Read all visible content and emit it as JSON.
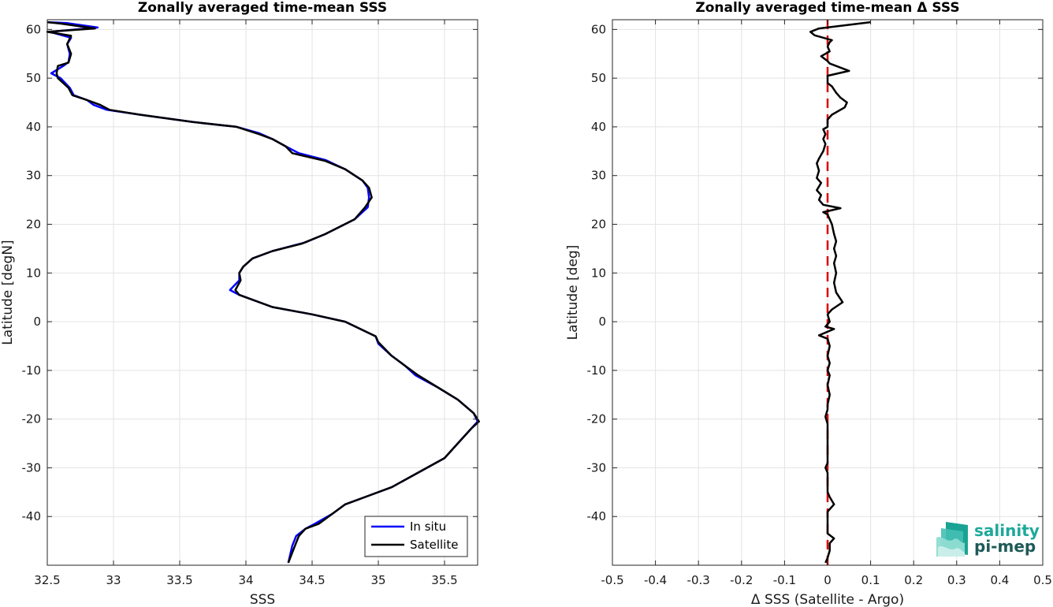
{
  "chart_data": [
    {
      "type": "line",
      "title": "Zonally averaged time-mean SSS",
      "xlabel": "SSS",
      "ylabel": "Latitude [degN]",
      "xlim": [
        32.5,
        35.75
      ],
      "ylim": [
        -50,
        62
      ],
      "xticks": [
        32.5,
        33,
        33.5,
        34,
        34.5,
        35,
        35.5
      ],
      "xtick_labels": [
        "32.5",
        "33",
        "33.5",
        "34",
        "34.5",
        "35",
        "35.5"
      ],
      "yticks": [
        -40,
        -30,
        -20,
        -10,
        0,
        10,
        20,
        30,
        40,
        50,
        60
      ],
      "ytick_labels": [
        "-40",
        "-30",
        "-20",
        "-10",
        "0",
        "10",
        "20",
        "30",
        "40",
        "50",
        "60"
      ],
      "grid": true,
      "legend": {
        "position": "bottom-right",
        "entries": [
          {
            "label": "In situ",
            "color": "#0000ff"
          },
          {
            "label": "Satellite",
            "color": "#000000"
          }
        ]
      },
      "series": [
        {
          "name": "In situ",
          "color": "#0000ff",
          "points": [
            [
              32.5,
              61.5
            ],
            [
              32.65,
              61.3
            ],
            [
              32.88,
              60.4
            ],
            [
              32.52,
              59.5
            ],
            [
              32.68,
              58.3
            ],
            [
              32.65,
              57
            ],
            [
              32.67,
              55
            ],
            [
              32.66,
              53.3
            ],
            [
              32.62,
              52.5
            ],
            [
              32.53,
              51
            ],
            [
              32.6,
              50
            ],
            [
              32.67,
              48
            ],
            [
              32.7,
              46.5
            ],
            [
              32.8,
              45.5
            ],
            [
              32.85,
              44.5
            ],
            [
              32.95,
              43.5
            ],
            [
              33.2,
              42.5
            ],
            [
              33.6,
              41
            ],
            [
              33.93,
              40
            ],
            [
              34.1,
              38.7
            ],
            [
              34.2,
              37.5
            ],
            [
              34.3,
              36
            ],
            [
              34.4,
              34.6
            ],
            [
              34.6,
              33.2
            ],
            [
              34.75,
              31.3
            ],
            [
              34.88,
              29
            ],
            [
              34.92,
              27.5
            ],
            [
              34.93,
              25.5
            ],
            [
              34.92,
              23.5
            ],
            [
              34.82,
              21
            ],
            [
              34.6,
              18
            ],
            [
              34.45,
              16.3
            ],
            [
              34.2,
              14.5
            ],
            [
              34.05,
              13
            ],
            [
              33.98,
              11.3
            ],
            [
              33.95,
              10
            ],
            [
              33.95,
              8.5
            ],
            [
              33.88,
              6.5
            ],
            [
              33.95,
              5.5
            ],
            [
              34.2,
              3
            ],
            [
              34.5,
              1.5
            ],
            [
              34.75,
              0
            ],
            [
              34.98,
              -3
            ],
            [
              35.0,
              -4.5
            ],
            [
              35.1,
              -7
            ],
            [
              35.2,
              -9
            ],
            [
              35.28,
              -11
            ],
            [
              35.45,
              -13.5
            ],
            [
              35.6,
              -16
            ],
            [
              35.72,
              -18.8
            ],
            [
              35.75,
              -20.5
            ],
            [
              35.7,
              -22
            ],
            [
              35.6,
              -25
            ],
            [
              35.5,
              -28
            ],
            [
              35.3,
              -31
            ],
            [
              35.1,
              -34
            ],
            [
              34.9,
              -36
            ],
            [
              34.75,
              -37.5
            ],
            [
              34.65,
              -39.5
            ],
            [
              34.52,
              -41.5
            ],
            [
              34.45,
              -42.5
            ],
            [
              34.38,
              -44
            ],
            [
              34.35,
              -46
            ],
            [
              34.32,
              -49.5
            ]
          ]
        },
        {
          "name": "Satellite",
          "color": "#000000",
          "points": [
            [
              32.5,
              61.5
            ],
            [
              32.6,
              61.2
            ],
            [
              32.86,
              60.2
            ],
            [
              32.55,
              59.6
            ],
            [
              32.5,
              59.5
            ],
            [
              32.68,
              58.7
            ],
            [
              32.65,
              57
            ],
            [
              32.68,
              55
            ],
            [
              32.66,
              53.2
            ],
            [
              32.58,
              52.5
            ],
            [
              32.57,
              51
            ],
            [
              32.58,
              50
            ],
            [
              32.66,
              48
            ],
            [
              32.69,
              46.5
            ],
            [
              32.8,
              45.5
            ],
            [
              32.9,
              44.5
            ],
            [
              32.97,
              43.5
            ],
            [
              33.2,
              42.5
            ],
            [
              33.6,
              41
            ],
            [
              33.93,
              40
            ],
            [
              34.1,
              38.5
            ],
            [
              34.2,
              37.5
            ],
            [
              34.3,
              36
            ],
            [
              34.35,
              34.6
            ],
            [
              34.6,
              33
            ],
            [
              34.75,
              31.3
            ],
            [
              34.88,
              29
            ],
            [
              34.93,
              27.5
            ],
            [
              34.95,
              25.5
            ],
            [
              34.9,
              23.5
            ],
            [
              34.82,
              21
            ],
            [
              34.6,
              18
            ],
            [
              34.42,
              16
            ],
            [
              34.2,
              14.5
            ],
            [
              34.05,
              13
            ],
            [
              33.98,
              11.3
            ],
            [
              33.95,
              10
            ],
            [
              33.96,
              8.5
            ],
            [
              33.92,
              6.5
            ],
            [
              33.95,
              5.5
            ],
            [
              34.2,
              3
            ],
            [
              34.5,
              1.5
            ],
            [
              34.75,
              0
            ],
            [
              34.98,
              -3
            ],
            [
              35.0,
              -4.2
            ],
            [
              35.1,
              -7
            ],
            [
              35.2,
              -9
            ],
            [
              35.3,
              -11
            ],
            [
              35.45,
              -13.5
            ],
            [
              35.6,
              -16
            ],
            [
              35.72,
              -18.8
            ],
            [
              35.76,
              -20.5
            ],
            [
              35.7,
              -22
            ],
            [
              35.6,
              -25
            ],
            [
              35.5,
              -28
            ],
            [
              35.3,
              -31
            ],
            [
              35.1,
              -34
            ],
            [
              34.9,
              -36
            ],
            [
              34.75,
              -37.5
            ],
            [
              34.65,
              -39.5
            ],
            [
              34.55,
              -41.5
            ],
            [
              34.45,
              -42.5
            ],
            [
              34.4,
              -44
            ],
            [
              34.37,
              -46
            ],
            [
              34.32,
              -49.5
            ]
          ]
        }
      ]
    },
    {
      "type": "line",
      "title": "Zonally averaged time-mean Δ SSS",
      "xlabel": "Δ SSS (Satellite - Argo)",
      "ylabel": "Latitude [deg]",
      "xlim": [
        -0.5,
        0.5
      ],
      "ylim": [
        -50,
        62
      ],
      "xticks": [
        -0.5,
        -0.4,
        -0.3,
        -0.2,
        -0.1,
        0,
        0.1,
        0.2,
        0.3,
        0.4,
        0.5
      ],
      "xtick_labels": [
        "-0.5",
        "-0.4",
        "-0.3",
        "-0.2",
        "-0.1",
        "0",
        "0.1",
        "0.2",
        "0.3",
        "0.4",
        "0.5"
      ],
      "yticks": [
        -40,
        -30,
        -20,
        -10,
        0,
        10,
        20,
        30,
        40,
        50,
        60
      ],
      "ytick_labels": [
        "-40",
        "-30",
        "-20",
        "-10",
        "0",
        "10",
        "20",
        "30",
        "40",
        "50",
        "60"
      ],
      "grid": true,
      "reference_line": {
        "x": 0,
        "color": "#dd0000",
        "style": "dashed"
      },
      "series": [
        {
          "color": "#000000",
          "points": [
            [
              0.1,
              61.5
            ],
            [
              -0.02,
              60.2
            ],
            [
              -0.04,
              59.5
            ],
            [
              -0.03,
              58.8
            ],
            [
              0.01,
              57.8
            ],
            [
              0.005,
              57.4
            ],
            [
              0.0,
              56.5
            ],
            [
              0.005,
              55.5
            ],
            [
              -0.015,
              54.5
            ],
            [
              0.0,
              53.5
            ],
            [
              0.005,
              53
            ],
            [
              0.05,
              51.5
            ],
            [
              0.0,
              50.5
            ],
            [
              0.0,
              49
            ],
            [
              0.01,
              48.3
            ],
            [
              0.02,
              47
            ],
            [
              0.03,
              46
            ],
            [
              0.045,
              45
            ],
            [
              0.04,
              44
            ],
            [
              0.01,
              42.5
            ],
            [
              0.0,
              41.5
            ],
            [
              0.0,
              40
            ],
            [
              -0.01,
              39.5
            ],
            [
              -0.005,
              38.5
            ],
            [
              -0.01,
              37.5
            ],
            [
              -0.005,
              36.5
            ],
            [
              -0.01,
              35
            ],
            [
              -0.02,
              33.5
            ],
            [
              -0.025,
              32.5
            ],
            [
              -0.02,
              31
            ],
            [
              -0.025,
              29.5
            ],
            [
              -0.015,
              28.5
            ],
            [
              -0.025,
              27
            ],
            [
              -0.015,
              26
            ],
            [
              -0.02,
              25
            ],
            [
              -0.01,
              24
            ],
            [
              0.03,
              23.3
            ],
            [
              -0.01,
              22.5
            ],
            [
              0.0,
              22
            ],
            [
              0.01,
              20
            ],
            [
              0.015,
              18
            ],
            [
              0.02,
              16.5
            ],
            [
              0.015,
              15
            ],
            [
              0.02,
              13.5
            ],
            [
              0.015,
              12
            ],
            [
              0.02,
              10
            ],
            [
              0.015,
              8
            ],
            [
              0.02,
              6
            ],
            [
              0.035,
              4
            ],
            [
              0.01,
              2.5
            ],
            [
              0.0,
              1.5
            ],
            [
              0.005,
              0
            ],
            [
              -0.005,
              -1
            ],
            [
              0.015,
              -1.5
            ],
            [
              -0.02,
              -2.8
            ],
            [
              0.0,
              -3.5
            ],
            [
              0.005,
              -5
            ],
            [
              0.0,
              -7
            ],
            [
              0.005,
              -8.5
            ],
            [
              0.0,
              -10
            ],
            [
              0.005,
              -11
            ],
            [
              0.0,
              -13
            ],
            [
              0.005,
              -15
            ],
            [
              0.0,
              -17
            ],
            [
              0.0,
              -18
            ],
            [
              -0.005,
              -19.5
            ],
            [
              0.0,
              -21
            ],
            [
              0.0,
              -22.5
            ],
            [
              0.0,
              -25
            ],
            [
              0.0,
              -27
            ],
            [
              0.0,
              -29
            ],
            [
              -0.005,
              -30
            ],
            [
              0.0,
              -31
            ],
            [
              0.0,
              -33
            ],
            [
              0.0,
              -35
            ],
            [
              0.005,
              -36
            ],
            [
              0.015,
              -37.5
            ],
            [
              0.0,
              -39
            ],
            [
              0.0,
              -40.5
            ],
            [
              0.0,
              -42
            ],
            [
              0.0,
              -43.5
            ],
            [
              0.015,
              -44.5
            ],
            [
              0.005,
              -45.5
            ],
            [
              0.005,
              -47
            ],
            [
              0.0,
              -48.5
            ],
            [
              -0.005,
              -49.5
            ]
          ]
        }
      ],
      "logo": {
        "line1": "salinity",
        "line2": "pi-mep"
      }
    }
  ]
}
